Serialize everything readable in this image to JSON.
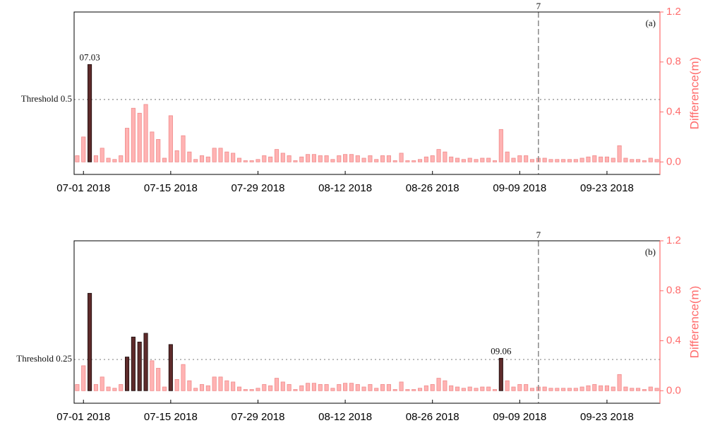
{
  "chart_data": [
    {
      "type": "bar",
      "panel": "(a)",
      "categories": [
        null,
        "07-01 2018",
        null,
        null,
        null,
        null,
        null,
        null,
        null,
        null,
        null,
        null,
        null,
        null,
        null,
        "07-15 2018",
        null,
        null,
        null,
        null,
        null,
        null,
        null,
        null,
        null,
        null,
        null,
        null,
        null,
        "07-29 2018",
        null,
        null,
        null,
        null,
        null,
        null,
        null,
        null,
        null,
        null,
        null,
        null,
        null,
        "08-12 2018",
        null,
        null,
        null,
        null,
        null,
        null,
        null,
        null,
        null,
        null,
        null,
        null,
        null,
        "08-26 2018",
        null,
        null,
        null,
        null,
        null,
        null,
        null,
        null,
        null,
        null,
        null,
        null,
        null,
        "09-09 2018",
        null,
        null,
        null,
        null,
        null,
        null,
        null,
        null,
        null,
        null,
        null,
        null,
        null,
        "09-23 2018",
        null,
        null,
        null,
        null,
        null,
        null,
        null,
        null
      ],
      "values": [
        0.05,
        0.2,
        0.78,
        0.05,
        0.11,
        0.03,
        0.02,
        0.05,
        0.27,
        0.43,
        0.39,
        0.46,
        0.24,
        0.18,
        0.03,
        0.37,
        0.09,
        0.21,
        0.08,
        0.02,
        0.05,
        0.04,
        0.11,
        0.11,
        0.08,
        0.07,
        0.03,
        0.01,
        0.01,
        0.02,
        0.05,
        0.04,
        0.1,
        0.07,
        0.05,
        0.01,
        0.04,
        0.06,
        0.06,
        0.05,
        0.05,
        0.02,
        0.05,
        0.06,
        0.06,
        0.05,
        0.03,
        0.05,
        0.02,
        0.05,
        0.05,
        0.01,
        0.07,
        0.01,
        0.01,
        0.02,
        0.04,
        0.05,
        0.1,
        0.08,
        0.04,
        0.03,
        0.02,
        0.03,
        0.02,
        0.03,
        0.03,
        0.01,
        0.26,
        0.08,
        0.03,
        0.05,
        0.05,
        0.02,
        0.03,
        0.03,
        0.02,
        0.02,
        0.02,
        0.02,
        0.02,
        0.03,
        0.04,
        0.05,
        0.04,
        0.04,
        0.03,
        0.13,
        0.03,
        0.02,
        0.02,
        0.01,
        0.03,
        0.02
      ],
      "color": "#ffb3b3",
      "highlight_color": "#5e2b2b",
      "threshold": {
        "value": 0.5,
        "label": "Threshold 0.5"
      },
      "annotation": "07.03",
      "vline": {
        "value": 74,
        "label": "7"
      },
      "ylabel": "Difference(m)",
      "ylim": [
        -0.1,
        1.2
      ],
      "yticks": [
        {
          "value": 0,
          "label": "0.0"
        },
        0.4,
        0.8,
        1.2
      ]
    },
    {
      "type": "bar",
      "panel": "(b)",
      "categories": [
        null,
        "07-01 2018",
        null,
        null,
        null,
        null,
        null,
        null,
        null,
        null,
        null,
        null,
        null,
        null,
        null,
        "07-15 2018",
        null,
        null,
        null,
        null,
        null,
        null,
        null,
        null,
        null,
        null,
        null,
        null,
        null,
        "07-29 2018",
        null,
        null,
        null,
        null,
        null,
        null,
        null,
        null,
        null,
        null,
        null,
        null,
        null,
        "08-12 2018",
        null,
        null,
        null,
        null,
        null,
        null,
        null,
        null,
        null,
        null,
        null,
        null,
        null,
        "08-26 2018",
        null,
        null,
        null,
        null,
        null,
        null,
        null,
        null,
        null,
        null,
        null,
        null,
        null,
        "09-09 2018",
        null,
        null,
        null,
        null,
        null,
        null,
        null,
        null,
        null,
        null,
        null,
        null,
        null,
        "09-23 2018",
        null,
        null,
        null,
        null,
        null,
        null,
        null,
        null
      ],
      "values": [
        0.05,
        0.2,
        0.78,
        0.05,
        0.11,
        0.03,
        0.02,
        0.05,
        0.27,
        0.43,
        0.39,
        0.46,
        0.24,
        0.18,
        0.03,
        0.37,
        0.09,
        0.21,
        0.08,
        0.02,
        0.05,
        0.04,
        0.11,
        0.11,
        0.08,
        0.07,
        0.03,
        0.01,
        0.01,
        0.02,
        0.05,
        0.04,
        0.1,
        0.07,
        0.05,
        0.01,
        0.04,
        0.06,
        0.06,
        0.05,
        0.05,
        0.02,
        0.05,
        0.06,
        0.06,
        0.05,
        0.03,
        0.05,
        0.02,
        0.05,
        0.05,
        0.01,
        0.07,
        0.01,
        0.01,
        0.02,
        0.04,
        0.05,
        0.1,
        0.08,
        0.04,
        0.03,
        0.02,
        0.03,
        0.02,
        0.03,
        0.03,
        0.01,
        0.26,
        0.08,
        0.03,
        0.05,
        0.05,
        0.02,
        0.03,
        0.03,
        0.02,
        0.02,
        0.02,
        0.02,
        0.02,
        0.03,
        0.04,
        0.05,
        0.04,
        0.04,
        0.03,
        0.13,
        0.03,
        0.02,
        0.02,
        0.01,
        0.03,
        0.02
      ],
      "color": "#ffb3b3",
      "highlight_color": "#5e2b2b",
      "threshold": {
        "value": 0.25,
        "label": "Threshold 0.25"
      },
      "annotation": "09.06",
      "vline": {
        "value": 74,
        "label": "7"
      },
      "ylabel": "Difference(m)",
      "ylim": [
        -0.1,
        1.2
      ],
      "yticks": [
        {
          "value": 0,
          "label": "0.0"
        },
        0.4,
        0.8,
        1.2
      ]
    }
  ]
}
